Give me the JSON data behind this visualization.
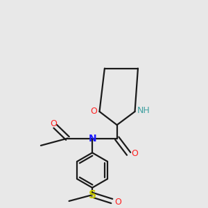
{
  "background_color": "#e8e8e8",
  "line_width": 1.6,
  "bond_color": "#1a1a1a",
  "atom_colors": {
    "N": "#1a1aff",
    "O": "#ff2020",
    "NH": "#40a0a0",
    "S": "#c8c800"
  },
  "font_sizes": {
    "N": 10,
    "O": 9,
    "NH": 9,
    "S": 11
  }
}
